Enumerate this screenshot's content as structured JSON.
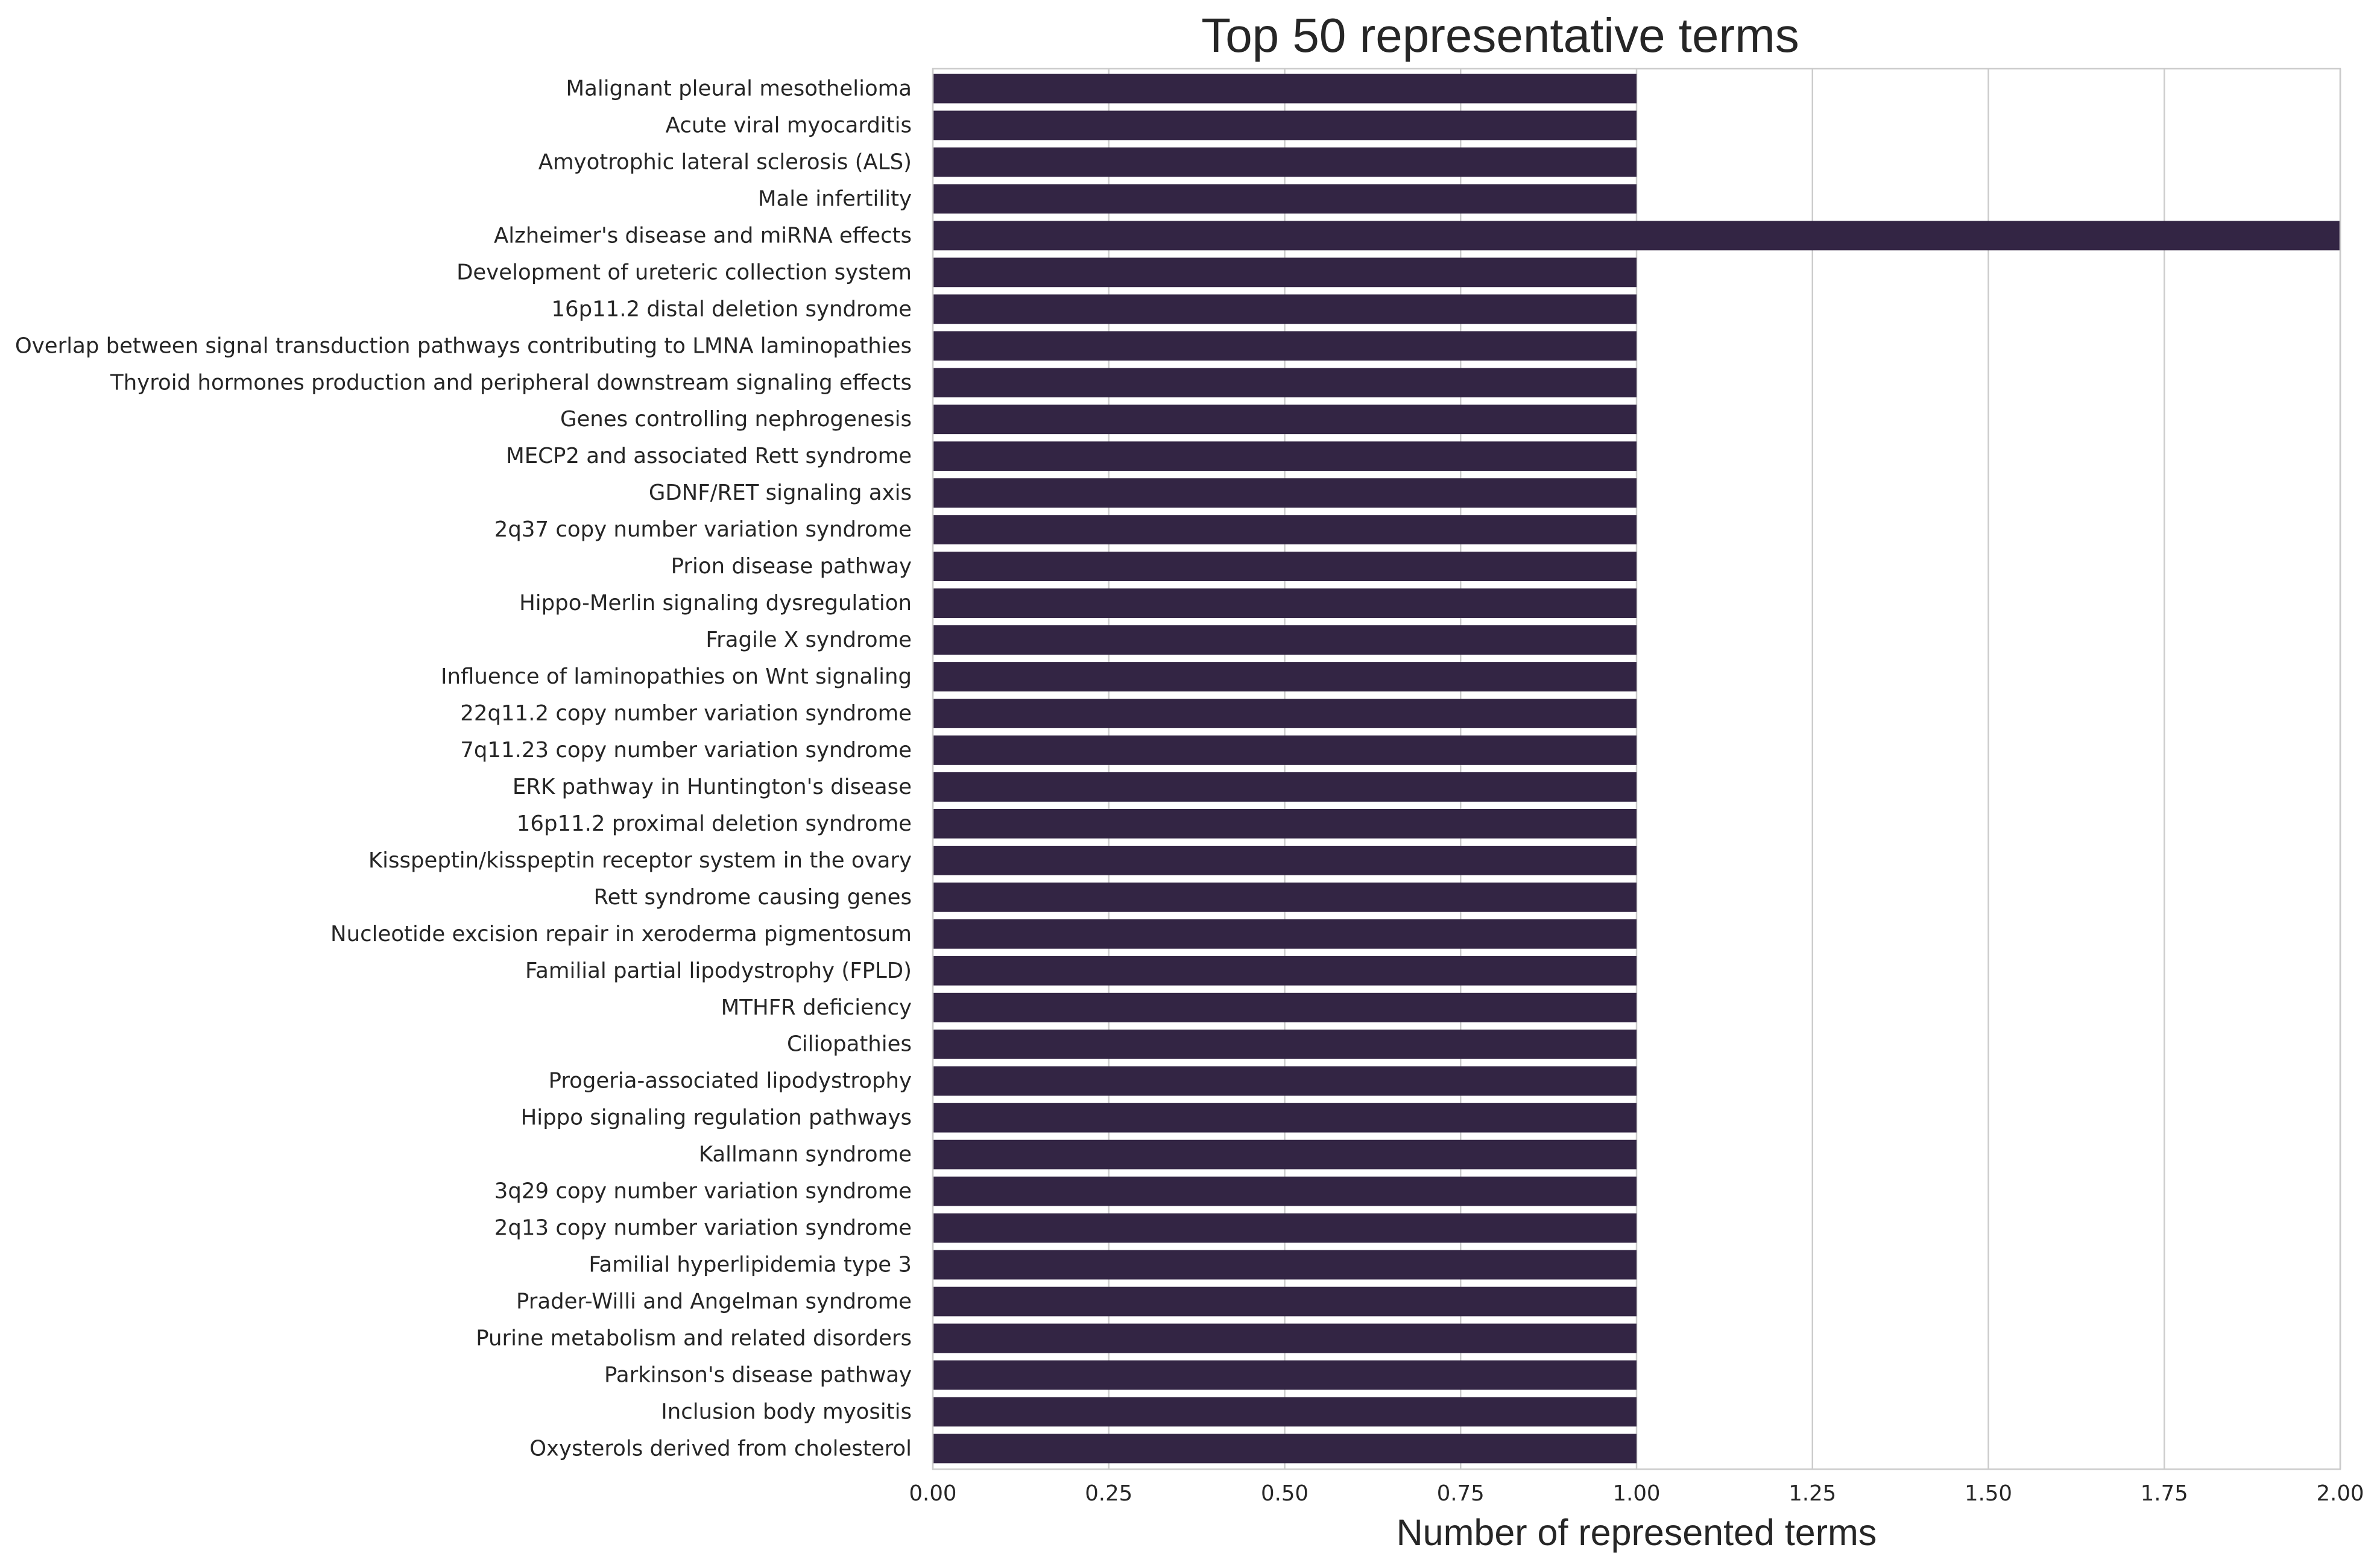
{
  "chart_data": {
    "type": "bar",
    "orientation": "horizontal",
    "title": "Top 50 representative terms",
    "xlabel": "Number of represented terms",
    "ylabel": "",
    "xlim": [
      0,
      2
    ],
    "xticks": [
      "0.00",
      "0.25",
      "0.50",
      "0.75",
      "1.00",
      "1.25",
      "1.50",
      "1.75",
      "2.00"
    ],
    "grid": "vertical",
    "bar_color": "#332544",
    "categories": [
      "Malignant pleural mesothelioma",
      "Acute viral myocarditis",
      "Amyotrophic lateral sclerosis (ALS)",
      "Male infertility",
      "Alzheimer's disease and miRNA effects",
      "Development of ureteric collection system",
      "16p11.2 distal deletion syndrome",
      "Overlap between signal transduction pathways contributing to LMNA laminopathies",
      "Thyroid hormones production and peripheral downstream signaling effects",
      "Genes controlling nephrogenesis",
      "MECP2 and associated Rett syndrome",
      "GDNF/RET signaling axis",
      "2q37 copy number variation syndrome",
      "Prion disease pathway",
      "Hippo-Merlin signaling dysregulation",
      "Fragile X syndrome",
      "Influence of laminopathies on Wnt signaling",
      "22q11.2 copy number variation syndrome",
      "7q11.23 copy number variation syndrome",
      "ERK pathway in Huntington's disease",
      "16p11.2 proximal deletion syndrome",
      "Kisspeptin/kisspeptin receptor system in the ovary",
      "Rett syndrome causing genes",
      "Nucleotide excision repair in xeroderma pigmentosum ",
      "Familial partial lipodystrophy (FPLD)",
      "MTHFR deficiency",
      "Ciliopathies",
      "Progeria-associated lipodystrophy",
      "Hippo signaling regulation pathways",
      "Kallmann syndrome",
      "3q29 copy number variation syndrome",
      "2q13 copy number variation syndrome",
      "Familial hyperlipidemia type 3",
      "Prader-Willi and Angelman syndrome",
      "Purine metabolism and related disorders",
      "Parkinson's disease pathway",
      "Inclusion body myositis",
      "Oxysterols derived from cholesterol"
    ],
    "values": [
      1,
      1,
      1,
      1,
      2,
      1,
      1,
      1,
      1,
      1,
      1,
      1,
      1,
      1,
      1,
      1,
      1,
      1,
      1,
      1,
      1,
      1,
      1,
      1,
      1,
      1,
      1,
      1,
      1,
      1,
      1,
      1,
      1,
      1,
      1,
      1,
      1,
      1
    ]
  }
}
